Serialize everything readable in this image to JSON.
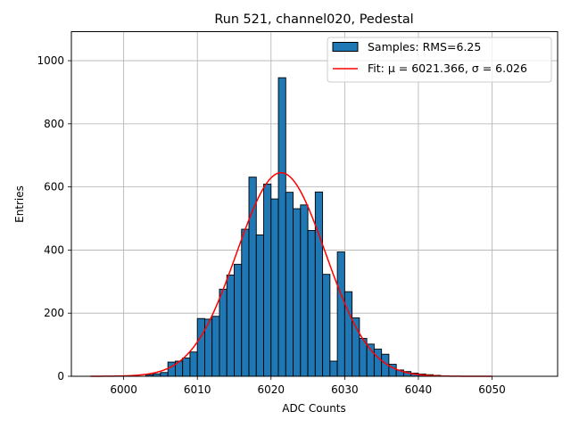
{
  "chart_data": {
    "type": "bar",
    "title": "Run 521, channel020, Pedestal",
    "xlabel": "ADC Counts",
    "ylabel": "Entries",
    "xlim": [
      5992.9,
      6058.9
    ],
    "ylim": [
      0,
      1092
    ],
    "xticks": [
      6000,
      6010,
      6020,
      6030,
      6040,
      6050
    ],
    "yticks": [
      0,
      200,
      400,
      600,
      800,
      1000
    ],
    "grid": true,
    "legend": {
      "location": "upper right"
    },
    "colors": {
      "bars": "#1f77b4",
      "bar_edge": "#000000",
      "fit": "#ff0000"
    },
    "histogram": {
      "name": "Samples: RMS=6.25",
      "bin_width": 1,
      "bins_from": 6003,
      "counts": [
        5,
        8,
        12,
        45,
        48,
        58,
        77,
        183,
        181,
        190,
        276,
        321,
        355,
        466,
        631,
        448,
        609,
        562,
        946,
        583,
        531,
        543,
        462,
        584,
        323,
        48,
        394,
        268,
        185,
        120,
        102,
        86,
        70,
        38,
        20,
        15,
        10,
        7,
        5,
        3
      ]
    },
    "fit": {
      "name": "Fit: μ = 6021.366, σ = 6.026",
      "mu": 6021.366,
      "sigma": 6.026,
      "amplitude": 645,
      "x_range": [
        5995.5,
        6050
      ]
    }
  }
}
